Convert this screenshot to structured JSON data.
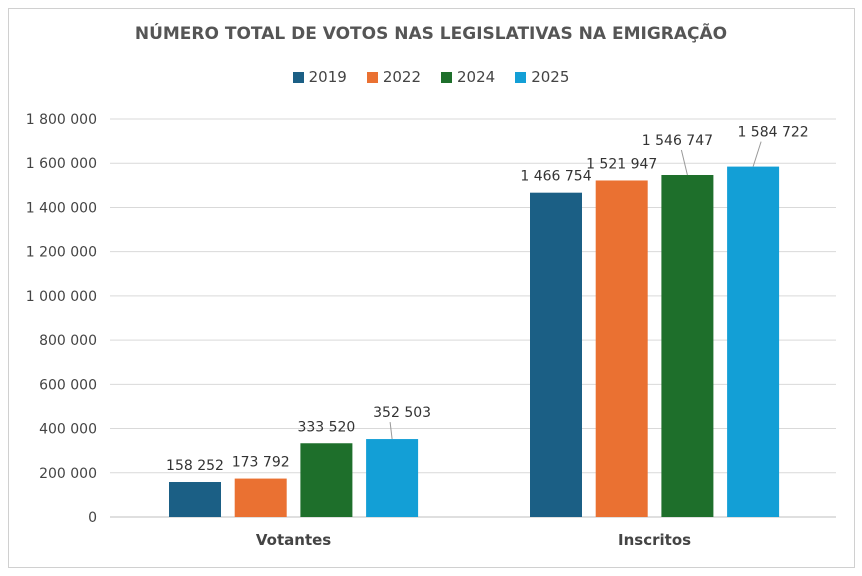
{
  "chart_data": {
    "type": "bar",
    "title": "NÚMERO TOTAL DE VOTOS NAS LEGISLATIVAS NA EMIGRAÇÃO",
    "categories": [
      "Votantes",
      "Inscritos"
    ],
    "series": [
      {
        "name": "2019",
        "color": "#1b5f85",
        "values": [
          158252,
          1466754
        ],
        "labels": [
          "158 252",
          "1 466 754"
        ]
      },
      {
        "name": "2022",
        "color": "#ea7132",
        "values": [
          173792,
          1521947
        ],
        "labels": [
          "173 792",
          "1 521 947"
        ]
      },
      {
        "name": "2024",
        "color": "#1e6f2b",
        "values": [
          333520,
          1546747
        ],
        "labels": [
          "333 520",
          "1 546 747"
        ]
      },
      {
        "name": "2025",
        "color": "#139fd6",
        "values": [
          352503,
          1584722
        ],
        "labels": [
          "352 503",
          "1 584 722"
        ]
      }
    ],
    "ylim": [
      0,
      1800000
    ],
    "yticks": [
      0,
      200000,
      400000,
      600000,
      800000,
      1000000,
      1200000,
      1400000,
      1600000,
      1800000
    ],
    "ytick_labels": [
      "0",
      "200 000",
      "400 000",
      "600 000",
      "800 000",
      "1 000 000",
      "1 200 000",
      "1 400 000",
      "1 600 000",
      "1 800 000"
    ],
    "legend": "top",
    "grid": true,
    "xlabel": "",
    "ylabel": ""
  }
}
